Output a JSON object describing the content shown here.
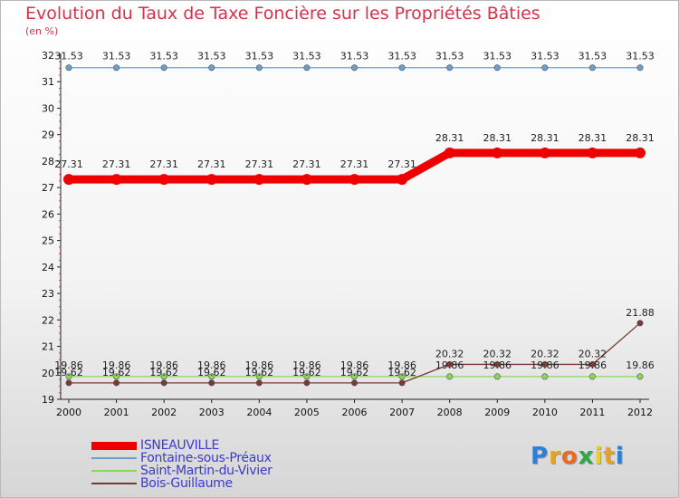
{
  "chart_data": {
    "type": "line",
    "title": "Evolution du Taux de Taxe Foncière sur les Propriétés Bâties",
    "subtitle": "(en %)",
    "x": [
      "2000",
      "2001",
      "2002",
      "2003",
      "2004",
      "2005",
      "2006",
      "2007",
      "2008",
      "2009",
      "2010",
      "2011",
      "2012"
    ],
    "ylim": [
      19,
      32
    ],
    "yticks": [
      19,
      20,
      21,
      22,
      23,
      24,
      25,
      26,
      27,
      28,
      29,
      30,
      31,
      32
    ],
    "series": [
      {
        "name": "ISNEAUVILLE",
        "color": "#ee0000",
        "values": [
          27.31,
          27.31,
          27.31,
          27.31,
          27.31,
          27.31,
          27.31,
          27.31,
          28.31,
          28.31,
          28.31,
          28.31,
          28.31
        ],
        "labels": [
          "27.31",
          "27.31",
          "27.31",
          "27.31",
          "27.31",
          "27.31",
          "27.31",
          "27.31",
          "28.31",
          "28.31",
          "28.31",
          "28.31",
          "28.31"
        ]
      },
      {
        "name": "Fontaine-sous-Préaux",
        "color": "#6a9fd2",
        "values": [
          31.53,
          31.53,
          31.53,
          31.53,
          31.53,
          31.53,
          31.53,
          31.53,
          31.53,
          31.53,
          31.53,
          31.53,
          31.53
        ],
        "labels": [
          "31.53",
          "31.53",
          "31.53",
          "31.53",
          "31.53",
          "31.53",
          "31.53",
          "31.53",
          "31.53",
          "31.53",
          "31.53",
          "31.53",
          "31.53"
        ]
      },
      {
        "name": "Saint-Martin-du-Vivier",
        "color": "#88d858",
        "values": [
          19.86,
          19.86,
          19.86,
          19.86,
          19.86,
          19.86,
          19.86,
          19.86,
          19.86,
          19.86,
          19.86,
          19.86,
          19.86
        ],
        "labels": [
          "19.86",
          "19.86",
          "19.86",
          "19.86",
          "19.86",
          "19.86",
          "19.86",
          "19.86",
          "19.86",
          "19.86",
          "19.86",
          "19.86",
          "19.86"
        ]
      },
      {
        "name": "Bois-Guillaume",
        "color": "#7a3838",
        "values": [
          19.62,
          19.62,
          19.62,
          19.62,
          19.62,
          19.62,
          19.62,
          19.62,
          20.32,
          20.32,
          20.32,
          20.32,
          21.88
        ],
        "labels": [
          "19.62",
          "19.62",
          "19.62",
          "19.62",
          "19.62",
          "19.62",
          "19.62",
          "19.62",
          "20.32",
          "20.32",
          "20.32",
          "20.32",
          "21.88"
        ]
      }
    ],
    "legend_position": "bottom-left"
  },
  "logo": {
    "letters": [
      "P",
      "r",
      "o",
      "x",
      "i",
      "t",
      "i"
    ],
    "colors": [
      "#2f7fd8",
      "#e8a21f",
      "#e86b1f",
      "#2fa84a",
      "#e8d01f",
      "#e8a21f",
      "#2f7fd8"
    ]
  }
}
